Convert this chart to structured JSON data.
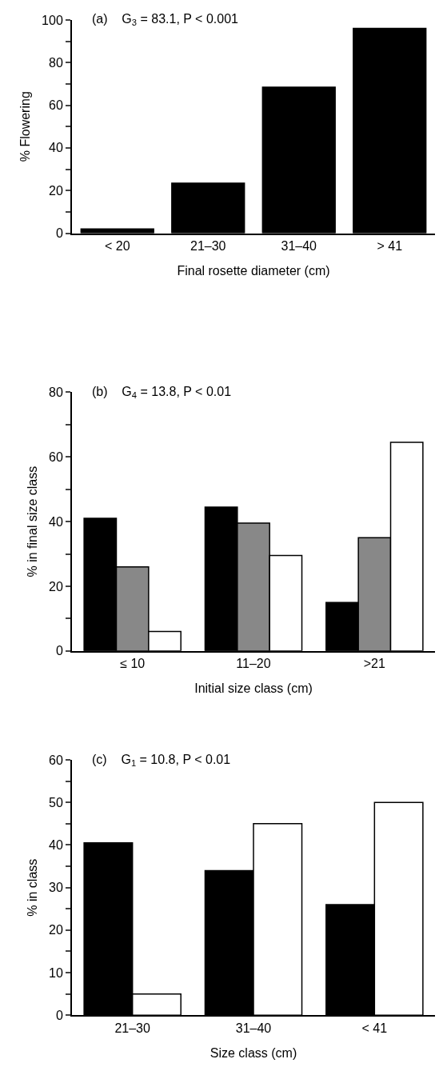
{
  "chart_data": [
    {
      "type": "bar",
      "categories": [
        "< 20",
        "21–30",
        "31–40",
        "> 41"
      ],
      "values": [
        2,
        23.5,
        68.5,
        96
      ],
      "color": "#000000",
      "xlabel": "Final rosette diameter (cm)",
      "ylabel": "% Flowering",
      "annotations": [
        "(a)    G$_{3}$ = 83.1, P < 0.001"
      ],
      "ylim": [
        0,
        100
      ],
      "yticks": [
        0,
        {
          "value": 10,
          "label": null
        },
        20,
        {
          "value": 30,
          "label": null
        },
        40,
        {
          "value": 50,
          "label": null
        },
        60,
        {
          "value": 70,
          "label": null
        },
        80,
        {
          "value": 90,
          "label": null
        },
        100
      ]
    },
    {
      "type": "bar",
      "categories": [
        "≤ 10",
        "11–20",
        ">21"
      ],
      "series": [
        {
          "color": "#000000",
          "values": [
            41,
            44.5,
            15
          ]
        },
        {
          "color": "#888888",
          "values": [
            26,
            39.5,
            35
          ]
        },
        {
          "color": "#ffffff",
          "values": [
            6,
            29.5,
            64.5
          ]
        }
      ],
      "xlabel": "Initial size class (cm)",
      "ylabel": "% in final size class",
      "annotations": [
        "(b)    G$_{4}$ = 13.8, P < 0.01"
      ],
      "ylim": [
        0,
        80
      ],
      "yticks": [
        0,
        {
          "value": 10,
          "label": null
        },
        20,
        {
          "value": 30,
          "label": null
        },
        40,
        {
          "value": 50,
          "label": null
        },
        60,
        {
          "value": 70,
          "label": null
        },
        80
      ]
    },
    {
      "type": "bar",
      "categories": [
        "21–30",
        "31–40",
        "< 41"
      ],
      "series": [
        {
          "color": "#000000",
          "values": [
            40.5,
            34,
            26
          ]
        },
        {
          "color": "#ffffff",
          "values": [
            5,
            45,
            50
          ]
        }
      ],
      "xlabel": "Size class (cm)",
      "ylabel": "% in class",
      "annotations": [
        "(c)    G$_{1}$ = 10.8, P < 0.01"
      ],
      "ylim": [
        0,
        60
      ],
      "yticks": [
        0,
        {
          "value": 5,
          "label": null
        },
        10,
        {
          "value": 15,
          "label": null
        },
        20,
        {
          "value": 25,
          "label": null
        },
        30,
        {
          "value": 35,
          "label": null
        },
        40,
        {
          "value": 45,
          "label": null
        },
        50,
        {
          "value": 55,
          "label": null
        },
        60
      ]
    }
  ]
}
